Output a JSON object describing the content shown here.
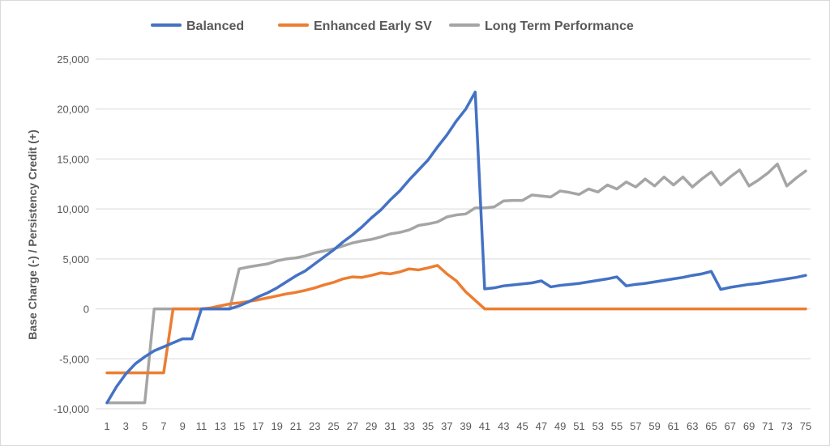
{
  "chart_data": {
    "type": "line",
    "title": "",
    "xlabel": "",
    "ylabel": "Base Charge (-) / Persistency Credit (+)",
    "ylim": [
      -10000,
      25000
    ],
    "yticks": [
      -10000,
      -5000,
      0,
      5000,
      10000,
      15000,
      20000,
      25000
    ],
    "ytick_labels": [
      "-10,000",
      "-5,000",
      "0",
      "5,000",
      "10,000",
      "15,000",
      "20,000",
      "25,000"
    ],
    "xlim": [
      1,
      75
    ],
    "xtick_labels": [
      "1",
      "3",
      "5",
      "7",
      "9",
      "11",
      "13",
      "15",
      "17",
      "19",
      "21",
      "23",
      "25",
      "27",
      "29",
      "31",
      "33",
      "35",
      "37",
      "39",
      "41",
      "43",
      "45",
      "47",
      "49",
      "51",
      "53",
      "55",
      "57",
      "59",
      "61",
      "63",
      "65",
      "67",
      "69",
      "71",
      "73",
      "75"
    ],
    "grid": true,
    "legend_position": "top",
    "x": [
      1,
      2,
      3,
      4,
      5,
      6,
      7,
      8,
      9,
      10,
      11,
      12,
      13,
      14,
      15,
      16,
      17,
      18,
      19,
      20,
      21,
      22,
      23,
      24,
      25,
      26,
      27,
      28,
      29,
      30,
      31,
      32,
      33,
      34,
      35,
      36,
      37,
      38,
      39,
      40,
      41,
      42,
      43,
      44,
      45,
      46,
      47,
      48,
      49,
      50,
      51,
      52,
      53,
      54,
      55,
      56,
      57,
      58,
      59,
      60,
      61,
      62,
      63,
      64,
      65,
      66,
      67,
      68,
      69,
      70,
      71,
      72,
      73,
      74,
      75
    ],
    "series": [
      {
        "name": "Balanced",
        "color": "#4472c4",
        "values": [
          -9400,
          -7800,
          -6500,
          -5500,
          -4800,
          -4200,
          -3800,
          -3400,
          -3000,
          -3000,
          0,
          0,
          0,
          0,
          300,
          700,
          1200,
          1600,
          2100,
          2700,
          3300,
          3800,
          4500,
          5200,
          5900,
          6700,
          7400,
          8200,
          9100,
          9900,
          10900,
          11800,
          12900,
          13900,
          14900,
          16200,
          17400,
          18800,
          20000,
          21700,
          2000,
          2100,
          2300,
          2400,
          2500,
          2600,
          2800,
          2200,
          2350,
          2450,
          2550,
          2700,
          2850,
          3000,
          3200,
          2300,
          2450,
          2550,
          2700,
          2850,
          3000,
          3150,
          3350,
          3500,
          3750,
          1950,
          2150,
          2300,
          2450,
          2550,
          2700,
          2850,
          3000,
          3150,
          3350
        ]
      },
      {
        "name": "Enhanced Early SV",
        "color": "#ed7d31",
        "values": [
          -6400,
          -6400,
          -6400,
          -6400,
          -6400,
          -6400,
          -6400,
          0,
          0,
          0,
          0,
          100,
          300,
          500,
          600,
          750,
          900,
          1100,
          1300,
          1500,
          1650,
          1850,
          2100,
          2400,
          2650,
          3000,
          3200,
          3150,
          3350,
          3600,
          3500,
          3700,
          4000,
          3900,
          4100,
          4350,
          3500,
          2800,
          1700,
          850,
          0,
          0,
          0,
          0,
          0,
          0,
          0,
          0,
          0,
          0,
          0,
          0,
          0,
          0,
          0,
          0,
          0,
          0,
          0,
          0,
          0,
          0,
          0,
          0,
          0,
          0,
          0,
          0,
          0,
          0,
          0,
          0,
          0,
          0,
          0
        ]
      },
      {
        "name": "Long Term Performance",
        "color": "#a5a5a5",
        "values": [
          -9400,
          -9400,
          -9400,
          -9400,
          -9400,
          0,
          0,
          0,
          0,
          0,
          0,
          0,
          0,
          0,
          4000,
          4200,
          4350,
          4500,
          4800,
          5000,
          5100,
          5300,
          5600,
          5800,
          6000,
          6300,
          6600,
          6800,
          6950,
          7200,
          7500,
          7650,
          7900,
          8350,
          8500,
          8700,
          9200,
          9400,
          9500,
          10100,
          10100,
          10200,
          10800,
          10850,
          10850,
          11400,
          11300,
          11200,
          11800,
          11650,
          11450,
          12000,
          11700,
          12400,
          12000,
          12700,
          12200,
          13000,
          12300,
          13200,
          12400,
          13200,
          12200,
          13000,
          13700,
          12400,
          13200,
          13900,
          12300,
          12900,
          13600,
          14500,
          12300,
          13100,
          13800
        ]
      }
    ]
  }
}
